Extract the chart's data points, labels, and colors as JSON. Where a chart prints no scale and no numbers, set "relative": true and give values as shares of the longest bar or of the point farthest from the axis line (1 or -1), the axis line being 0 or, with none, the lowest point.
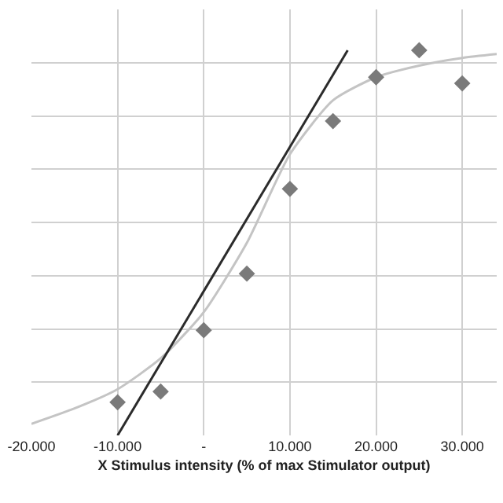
{
  "chart_data": {
    "type": "scatter",
    "xlabel": "X Stimulus intensity (% of max Stimulator output)",
    "relative": true,
    "xlim": [
      -20,
      34
    ],
    "xticks": [
      {
        "value": -20,
        "label": "-20.000"
      },
      {
        "value": -10,
        "label": "-10.000"
      },
      {
        "value": 0,
        "label": "-"
      },
      {
        "value": 10,
        "label": "10.000"
      },
      {
        "value": 20,
        "label": "20.000"
      },
      {
        "value": 30,
        "label": "30.000"
      }
    ],
    "grid": true,
    "marker": "diamond",
    "series": [
      {
        "type": "line",
        "marker": "none",
        "color": "#c4c4c4",
        "x": [
          -20,
          -15,
          -10,
          -5,
          0,
          5,
          10,
          15,
          20,
          25,
          30,
          34
        ],
        "values": [
          0.03,
          0.07,
          0.12,
          0.2,
          0.32,
          0.5,
          0.73,
          0.87,
          0.93,
          0.96,
          0.98,
          0.99
        ]
      },
      {
        "type": "line",
        "marker": "none",
        "color": "#2b2b2b",
        "x": [
          -10,
          16.7
        ],
        "values": [
          0,
          1
        ]
      },
      {
        "color": "#7a7a7a",
        "x": [
          -10,
          -5,
          0,
          5,
          10,
          15,
          20,
          25,
          30
        ],
        "values": [
          0.086,
          0.114,
          0.273,
          0.42,
          0.64,
          0.816,
          0.93,
          1,
          0.914
        ]
      }
    ]
  }
}
